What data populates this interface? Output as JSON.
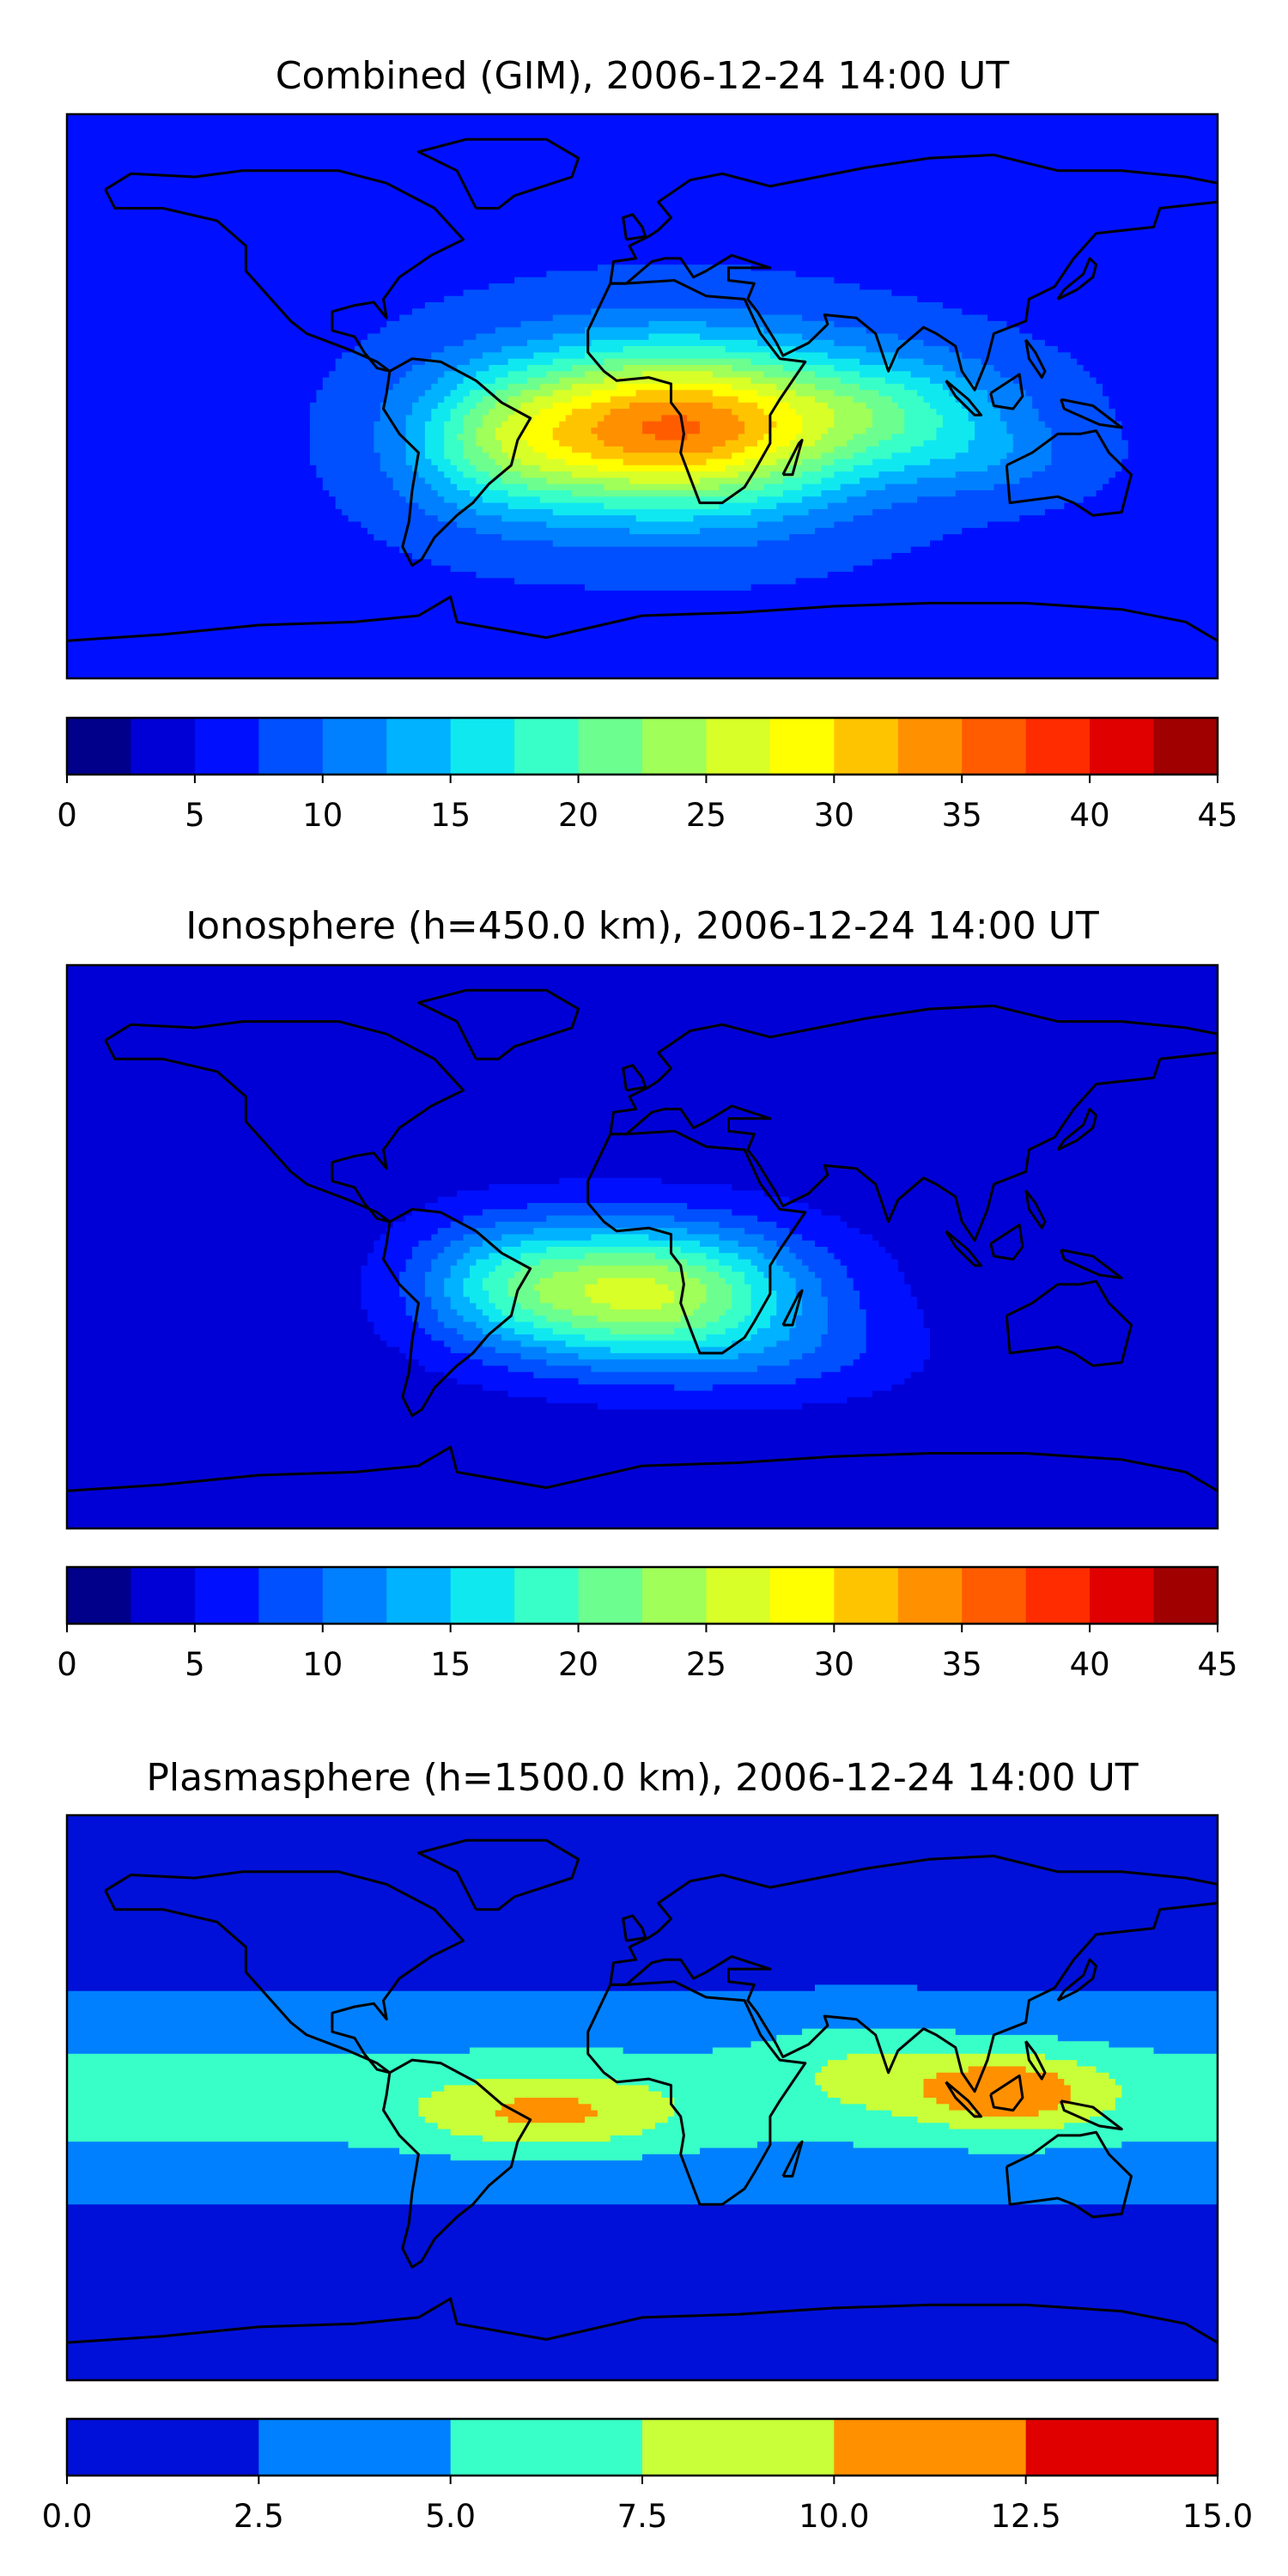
{
  "chart_data": [
    {
      "type": "heatmap",
      "title": "Combined (GIM), 2006-12-24 14:00 UT",
      "colorbar": {
        "levels": [
          0,
          2.5,
          5,
          7.5,
          10,
          12.5,
          15,
          17.5,
          20,
          22.5,
          25,
          27.5,
          30,
          32.5,
          35,
          37.5,
          40,
          42.5,
          45
        ],
        "colors": [
          "#00008b",
          "#0000d6",
          "#0010ff",
          "#0050ff",
          "#0080ff",
          "#00b2ff",
          "#10e8f0",
          "#38ffc8",
          "#6cff90",
          "#a0ff58",
          "#d8ff28",
          "#ffff00",
          "#ffc400",
          "#ff9000",
          "#ff5c00",
          "#ff2c00",
          "#e00000",
          "#a00000"
        ],
        "tick_values": [
          0,
          5,
          10,
          15,
          20,
          25,
          30,
          35,
          40,
          45
        ],
        "tick_labels": [
          "0",
          "5",
          "10",
          "15",
          "20",
          "25",
          "30",
          "35",
          "40",
          "45"
        ]
      },
      "field": {
        "background": 7,
        "blobs": [
          {
            "lon": 10,
            "lat": -10,
            "slon": 55,
            "slat": 26,
            "amp": 28
          },
          {
            "lon": -45,
            "lat": -15,
            "slon": 30,
            "slat": 22,
            "amp": 8
          },
          {
            "lon": 80,
            "lat": -5,
            "slon": 38,
            "slat": 18,
            "amp": 8
          },
          {
            "lon": 110,
            "lat": -20,
            "slon": 28,
            "slat": 12,
            "amp": 3
          }
        ]
      }
    },
    {
      "type": "heatmap",
      "title": "Ionosphere  (h=450.0 km), 2006-12-24 14:00 UT",
      "colorbar": {
        "levels": [
          0,
          2.5,
          5,
          7.5,
          10,
          12.5,
          15,
          17.5,
          20,
          22.5,
          25,
          27.5,
          30,
          32.5,
          35,
          37.5,
          40,
          42.5,
          45
        ],
        "colors": [
          "#00008b",
          "#0000d6",
          "#0010ff",
          "#0050ff",
          "#0080ff",
          "#00b2ff",
          "#10e8f0",
          "#38ffc8",
          "#6cff90",
          "#a0ff58",
          "#d8ff28",
          "#ffff00",
          "#ffc400",
          "#ff9000",
          "#ff5c00",
          "#ff2c00",
          "#e00000",
          "#a00000"
        ],
        "tick_values": [
          0,
          5,
          10,
          15,
          20,
          25,
          30,
          35,
          40,
          45
        ],
        "tick_labels": [
          "0",
          "5",
          "10",
          "15",
          "20",
          "25",
          "30",
          "35",
          "40",
          "45"
        ]
      },
      "field": {
        "background": 3.5,
        "blobs": [
          {
            "lon": 0,
            "lat": -15,
            "slon": 50,
            "slat": 22,
            "amp": 22
          },
          {
            "lon": -45,
            "lat": -10,
            "slon": 28,
            "slat": 20,
            "amp": 6
          },
          {
            "lon": 50,
            "lat": -35,
            "slon": 40,
            "slat": 15,
            "amp": 3
          }
        ]
      }
    },
    {
      "type": "heatmap",
      "title": "Plasmasphere (h=1500.0 km), 2006-12-24 14:00 UT",
      "colorbar": {
        "levels": [
          0.0,
          2.5,
          5.0,
          7.5,
          10.0,
          12.5,
          15.0
        ],
        "colors": [
          "#0010d8",
          "#0080ff",
          "#38ffc8",
          "#c8ff38",
          "#ff9000",
          "#e00000"
        ],
        "tick_values": [
          0.0,
          2.5,
          5.0,
          7.5,
          10.0,
          12.5,
          15.0
        ],
        "tick_labels": [
          "0.0",
          "2.5",
          "5.0",
          "7.5",
          "10.0",
          "12.5",
          "15.0"
        ]
      },
      "field": {
        "background": 1.2,
        "band": {
          "lat": 0,
          "width": 30,
          "amp": 4.6
        },
        "blobs": [
          {
            "lon": -30,
            "lat": -5,
            "slon": 40,
            "slat": 12,
            "amp": 5
          },
          {
            "lon": 115,
            "lat": 2,
            "slon": 30,
            "slat": 12,
            "amp": 6.5
          },
          {
            "lon": 70,
            "lat": 10,
            "slon": 30,
            "slat": 15,
            "amp": 2.5
          }
        ]
      }
    }
  ]
}
